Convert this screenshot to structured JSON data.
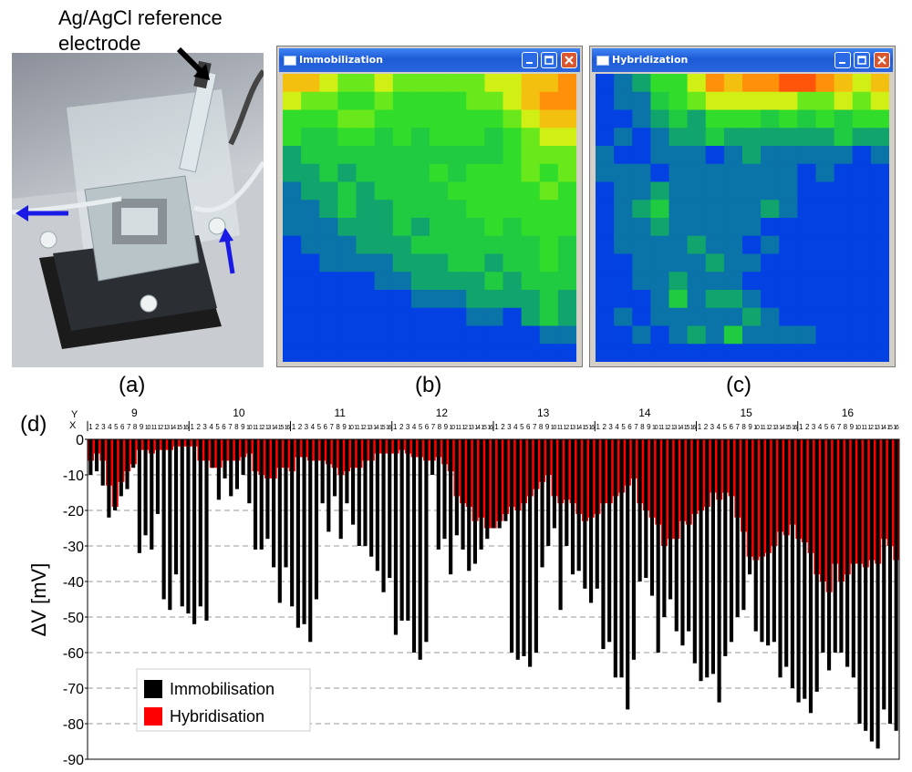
{
  "panels": {
    "a_label": "(a)",
    "b_label": "(b)",
    "c_label": "(c)",
    "d_label": "(d)"
  },
  "photo": {
    "reference_label_line1": "Ag/AgCl reference",
    "reference_label_line2": "electrode"
  },
  "windows": {
    "immobilization_title": "Immobilization",
    "hybridization_title": "Hybridization"
  },
  "colors": {
    "immobilisation": "#000000",
    "hybridisation": "#ff0000",
    "arrow_blue": "#1a1ae6",
    "titlebar": "#245edb"
  },
  "heatmaps": {
    "immobilization": [
      [
        0.73,
        0.73,
        0.63,
        0.54,
        0.54,
        0.63,
        0.54,
        0.54,
        0.54,
        0.54,
        0.54,
        0.63,
        0.63,
        0.73,
        0.73,
        0.81
      ],
      [
        0.63,
        0.54,
        0.54,
        0.45,
        0.45,
        0.54,
        0.45,
        0.45,
        0.45,
        0.45,
        0.54,
        0.54,
        0.63,
        0.73,
        0.81,
        0.81
      ],
      [
        0.45,
        0.45,
        0.45,
        0.54,
        0.54,
        0.45,
        0.45,
        0.45,
        0.45,
        0.45,
        0.45,
        0.45,
        0.54,
        0.63,
        0.73,
        0.73
      ],
      [
        0.45,
        0.36,
        0.36,
        0.45,
        0.45,
        0.36,
        0.45,
        0.36,
        0.45,
        0.45,
        0.45,
        0.36,
        0.45,
        0.54,
        0.63,
        0.63
      ],
      [
        0.25,
        0.36,
        0.36,
        0.36,
        0.36,
        0.36,
        0.36,
        0.36,
        0.36,
        0.36,
        0.36,
        0.36,
        0.45,
        0.54,
        0.54,
        0.54
      ],
      [
        0.25,
        0.25,
        0.36,
        0.25,
        0.36,
        0.36,
        0.36,
        0.36,
        0.45,
        0.36,
        0.45,
        0.45,
        0.45,
        0.54,
        0.45,
        0.54
      ],
      [
        0.15,
        0.25,
        0.25,
        0.36,
        0.25,
        0.36,
        0.36,
        0.36,
        0.36,
        0.45,
        0.45,
        0.45,
        0.45,
        0.45,
        0.54,
        0.45
      ],
      [
        0.15,
        0.15,
        0.25,
        0.36,
        0.25,
        0.25,
        0.36,
        0.36,
        0.36,
        0.36,
        0.45,
        0.45,
        0.45,
        0.45,
        0.45,
        0.45
      ],
      [
        0.15,
        0.15,
        0.15,
        0.25,
        0.25,
        0.25,
        0.36,
        0.25,
        0.36,
        0.36,
        0.36,
        0.45,
        0.36,
        0.45,
        0.45,
        0.45
      ],
      [
        0.05,
        0.15,
        0.15,
        0.15,
        0.25,
        0.25,
        0.25,
        0.36,
        0.36,
        0.36,
        0.36,
        0.36,
        0.36,
        0.36,
        0.45,
        0.36
      ],
      [
        0.05,
        0.05,
        0.15,
        0.15,
        0.15,
        0.15,
        0.25,
        0.25,
        0.25,
        0.36,
        0.36,
        0.25,
        0.36,
        0.36,
        0.45,
        0.36
      ],
      [
        0.05,
        0.05,
        0.05,
        0.05,
        0.05,
        0.15,
        0.15,
        0.25,
        0.25,
        0.25,
        0.25,
        0.36,
        0.25,
        0.36,
        0.36,
        0.36
      ],
      [
        0.05,
        0.05,
        0.05,
        0.05,
        0.05,
        0.05,
        0.05,
        0.15,
        0.15,
        0.15,
        0.25,
        0.25,
        0.25,
        0.25,
        0.36,
        0.25
      ],
      [
        0.05,
        0.05,
        0.05,
        0.05,
        0.05,
        0.05,
        0.05,
        0.05,
        0.05,
        0.05,
        0.15,
        0.15,
        0.05,
        0.25,
        0.36,
        0.25
      ],
      [
        0.05,
        0.05,
        0.05,
        0.05,
        0.05,
        0.05,
        0.05,
        0.05,
        0.05,
        0.05,
        0.05,
        0.05,
        0.05,
        0.05,
        0.15,
        0.15
      ],
      [
        0.05,
        0.05,
        0.05,
        0.05,
        0.05,
        0.05,
        0.05,
        0.05,
        0.05,
        0.05,
        0.05,
        0.05,
        0.05,
        0.05,
        0.05,
        0.05
      ]
    ],
    "hybridization": [
      [
        0.05,
        0.15,
        0.25,
        0.45,
        0.45,
        0.63,
        0.81,
        0.73,
        0.81,
        0.81,
        0.9,
        0.9,
        0.81,
        0.73,
        0.63,
        0.73
      ],
      [
        0.05,
        0.15,
        0.15,
        0.36,
        0.45,
        0.54,
        0.63,
        0.63,
        0.63,
        0.63,
        0.63,
        0.54,
        0.54,
        0.63,
        0.54,
        0.63
      ],
      [
        0.05,
        0.05,
        0.15,
        0.25,
        0.36,
        0.25,
        0.45,
        0.45,
        0.45,
        0.36,
        0.45,
        0.36,
        0.45,
        0.36,
        0.45,
        0.45
      ],
      [
        0.05,
        0.15,
        0.05,
        0.15,
        0.25,
        0.25,
        0.36,
        0.25,
        0.25,
        0.25,
        0.25,
        0.25,
        0.25,
        0.36,
        0.25,
        0.25
      ],
      [
        0.15,
        0.05,
        0.05,
        0.15,
        0.15,
        0.15,
        0.05,
        0.15,
        0.25,
        0.15,
        0.15,
        0.15,
        0.15,
        0.15,
        0.05,
        0.15
      ],
      [
        0.15,
        0.15,
        0.15,
        0.05,
        0.15,
        0.15,
        0.15,
        0.15,
        0.15,
        0.15,
        0.15,
        0.05,
        0.15,
        0.05,
        0.05,
        0.05
      ],
      [
        0.05,
        0.15,
        0.15,
        0.25,
        0.15,
        0.15,
        0.15,
        0.15,
        0.15,
        0.15,
        0.15,
        0.05,
        0.05,
        0.05,
        0.05,
        0.05
      ],
      [
        0.05,
        0.15,
        0.25,
        0.36,
        0.15,
        0.15,
        0.15,
        0.15,
        0.15,
        0.25,
        0.15,
        0.05,
        0.05,
        0.05,
        0.05,
        0.05
      ],
      [
        0.05,
        0.15,
        0.15,
        0.25,
        0.15,
        0.15,
        0.15,
        0.15,
        0.15,
        0.05,
        0.05,
        0.05,
        0.05,
        0.05,
        0.05,
        0.05
      ],
      [
        0.05,
        0.15,
        0.15,
        0.15,
        0.15,
        0.25,
        0.15,
        0.15,
        0.05,
        0.15,
        0.05,
        0.05,
        0.05,
        0.05,
        0.05,
        0.05
      ],
      [
        0.05,
        0.05,
        0.15,
        0.15,
        0.15,
        0.15,
        0.25,
        0.15,
        0.15,
        0.05,
        0.05,
        0.05,
        0.05,
        0.05,
        0.05,
        0.05
      ],
      [
        0.05,
        0.05,
        0.15,
        0.15,
        0.25,
        0.15,
        0.15,
        0.15,
        0.05,
        0.05,
        0.05,
        0.05,
        0.05,
        0.05,
        0.05,
        0.05
      ],
      [
        0.05,
        0.05,
        0.05,
        0.15,
        0.36,
        0.15,
        0.25,
        0.25,
        0.15,
        0.05,
        0.05,
        0.05,
        0.05,
        0.05,
        0.05,
        0.05
      ],
      [
        0.05,
        0.15,
        0.05,
        0.15,
        0.15,
        0.15,
        0.15,
        0.15,
        0.25,
        0.15,
        0.05,
        0.05,
        0.05,
        0.05,
        0.05,
        0.05
      ],
      [
        0.05,
        0.05,
        0.15,
        0.05,
        0.15,
        0.25,
        0.15,
        0.36,
        0.15,
        0.15,
        0.15,
        0.15,
        0.05,
        0.05,
        0.05,
        0.05
      ],
      [
        0.05,
        0.05,
        0.05,
        0.05,
        0.05,
        0.05,
        0.05,
        0.05,
        0.05,
        0.05,
        0.05,
        0.05,
        0.05,
        0.05,
        0.05,
        0.05
      ]
    ]
  },
  "chart_data": {
    "type": "bar",
    "ylabel": "ΔV [mV]",
    "ylim": [
      -90,
      0
    ],
    "yticks": [
      0,
      -10,
      -20,
      -30,
      -40,
      -50,
      -60,
      -70,
      -80,
      -90
    ],
    "grid": "horizontal dashed",
    "legend": "bottom-left",
    "axis_header_y": "Y",
    "axis_header_x": "X",
    "groups": [
      "9",
      "10",
      "11",
      "12",
      "13",
      "14",
      "15",
      "16"
    ],
    "x_labels": [
      "1",
      "2",
      "3",
      "4",
      "5",
      "6",
      "7",
      "8",
      "9",
      "10",
      "11",
      "12",
      "13",
      "14",
      "15",
      "16"
    ],
    "series": [
      {
        "name": "Immobilisation",
        "color": "#000000",
        "values": [
          -10,
          -9,
          -13,
          -22,
          -20,
          -16,
          -14,
          -8,
          -32,
          -27,
          -31,
          -21,
          -45,
          -48,
          -38,
          -47,
          -49,
          -52,
          -47,
          -51,
          -8,
          -17,
          -11,
          -16,
          -14,
          -10,
          -18,
          -31,
          -31,
          -28,
          -36,
          -46,
          -36,
          -47,
          -53,
          -52,
          -57,
          -45,
          -18,
          -26,
          -16,
          -28,
          -18,
          -24,
          -30,
          -30,
          -33,
          -37,
          -43,
          -39,
          -55,
          -51,
          -51,
          -60,
          -62,
          -57,
          -10,
          -31,
          -28,
          -38,
          -27,
          -31,
          -37,
          -35,
          -31,
          -28,
          -25,
          -25,
          -23,
          -60,
          -62,
          -61,
          -64,
          -60,
          -36,
          -30,
          -25,
          -48,
          -30,
          -38,
          -37,
          -42,
          -46,
          -42,
          -59,
          -57,
          -67,
          -67,
          -76,
          -62,
          -40,
          -39,
          -44,
          -60,
          -50,
          -45,
          -54,
          -58,
          -54,
          -63,
          -68,
          -67,
          -66,
          -74,
          -61,
          -57,
          -50,
          -48,
          -38,
          -54,
          -57,
          -58,
          -57,
          -67,
          -64,
          -70,
          -74,
          -73,
          -77,
          -71,
          -60,
          -65,
          -60,
          -60,
          -64,
          -67,
          -80,
          -82,
          -85,
          -87,
          -76,
          -80,
          -82
        ]
      },
      {
        "name": "Hybridisation",
        "color": "#ff0000",
        "values": [
          -6,
          -4,
          -6,
          -13,
          -19,
          -12,
          -9,
          -7,
          -3,
          -3,
          -4,
          -3,
          -3,
          -3,
          -2,
          -2,
          -2,
          -2,
          -6,
          -6,
          -8,
          -8,
          -6,
          -6,
          -6,
          -5,
          -4,
          -9,
          -10,
          -11,
          -11,
          -8,
          -8,
          -9,
          -5,
          -5,
          -6,
          -6,
          -6,
          -7,
          -8,
          -10,
          -9,
          -8,
          -8,
          -6,
          -6,
          -4,
          -4,
          -4,
          -4,
          -3,
          -4,
          -5,
          -5,
          -6,
          -6,
          -5,
          -7,
          -9,
          -16,
          -18,
          -19,
          -23,
          -22,
          -25,
          -25,
          -23,
          -21,
          -19,
          -20,
          -18,
          -16,
          -14,
          -12,
          -10,
          -16,
          -18,
          -17,
          -18,
          -21,
          -23,
          -22,
          -21,
          -18,
          -18,
          -16,
          -15,
          -13,
          -11,
          -18,
          -20,
          -22,
          -24,
          -30,
          -28,
          -28,
          -23,
          -24,
          -21,
          -20,
          -19,
          -15,
          -17,
          -15,
          -16,
          -22,
          -26,
          -33,
          -34,
          -33,
          -32,
          -30,
          -26,
          -27,
          -24,
          -28,
          -29,
          -32,
          -38,
          -40,
          -43,
          -35,
          -40,
          -38,
          -35,
          -35,
          -36,
          -34,
          -35,
          -28,
          -30,
          -34
        ]
      }
    ]
  }
}
